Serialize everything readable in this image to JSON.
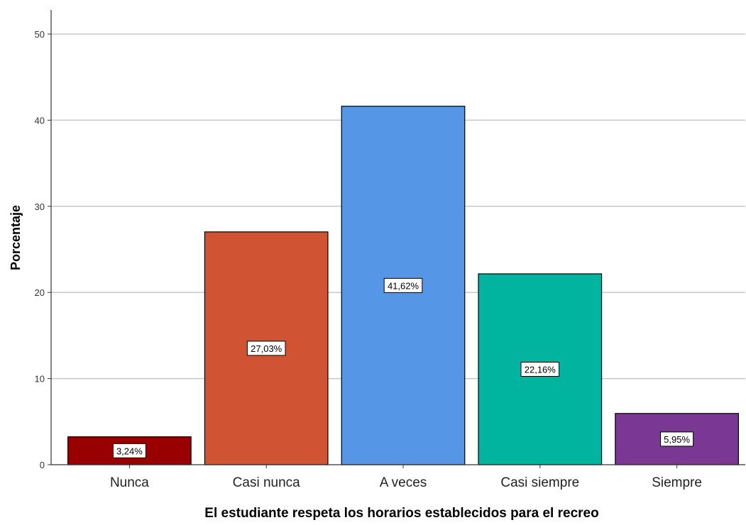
{
  "chart_data": {
    "type": "bar",
    "title": "",
    "xlabel": "El estudiante respeta los horarios establecidos para el recreo",
    "ylabel": "Porcentaje",
    "ylim": [
      0,
      50
    ],
    "yticks": [
      0,
      10,
      20,
      30,
      40,
      50
    ],
    "grid": true,
    "categories": [
      "Nunca",
      "Casi nunca",
      "A veces",
      "Casi siempre",
      "Siempre"
    ],
    "values": [
      3.24,
      27.03,
      41.62,
      22.16,
      5.95
    ],
    "data_labels": [
      "3,24%",
      "27,03%",
      "41,62%",
      "22,16%",
      "5,95%"
    ],
    "colors": [
      "#990000",
      "#D05434",
      "#5597E6",
      "#00B4A0",
      "#7B3794"
    ]
  }
}
